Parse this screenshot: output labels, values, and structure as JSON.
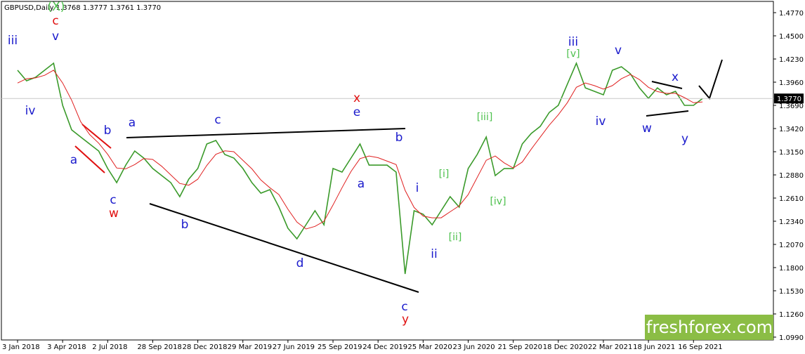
{
  "chart_data": {
    "type": "line",
    "title": "GBPUSD,Daily  1.3768 1.3777 1.3761 1.3770",
    "watermark": "freshforex.com",
    "categories": [
      "3 Jan 2018",
      null,
      null,
      null,
      null,
      "3 Apr 2018",
      null,
      null,
      null,
      null,
      "2 Jul 2018",
      null,
      null,
      null,
      null,
      "28 Sep 2018",
      null,
      null,
      null,
      null,
      "28 Dec 2018",
      null,
      null,
      null,
      null,
      "29 Mar 2019",
      null,
      null,
      null,
      null,
      "27 Jun 2019",
      null,
      null,
      null,
      null,
      "25 Sep 2019",
      null,
      null,
      null,
      null,
      "24 Dec 2019",
      null,
      null,
      null,
      null,
      "25 Mar 2020",
      null,
      null,
      null,
      null,
      "23 Jun 2020",
      null,
      null,
      null,
      null,
      "21 Sep 2020",
      null,
      null,
      null,
      null,
      "18 Dec 2020",
      null,
      null,
      null,
      null,
      "22 Mar 2021",
      null,
      null,
      null,
      null,
      "18 Jun 2021",
      null,
      null,
      null,
      null,
      "16 Sep 2021",
      null
    ],
    "series": [
      {
        "name": "GBPUSD",
        "color": "#3a9a2a",
        "values": [
          1.4099,
          1.3976,
          1.4017,
          1.4099,
          1.4181,
          1.369,
          1.3404,
          1.3322,
          1.324,
          1.3158,
          1.2954,
          1.279,
          1.2994,
          1.3158,
          1.3076,
          1.2954,
          1.2872,
          1.279,
          1.2626,
          1.2831,
          1.2954,
          1.324,
          1.3281,
          1.3117,
          1.3076,
          1.2954,
          1.279,
          1.2667,
          1.2708,
          1.2504,
          1.2258,
          1.2135,
          1.2299,
          1.2463,
          1.2299,
          1.2954,
          1.2913,
          1.3076,
          1.324,
          1.2994,
          1.2994,
          1.2994,
          1.2913,
          1.1726,
          1.2463,
          1.2422,
          1.2299,
          1.2463,
          1.2626,
          1.2504,
          1.2954,
          1.3117,
          1.3322,
          1.2872,
          1.2954,
          1.2954,
          1.324,
          1.3363,
          1.3445,
          1.3608,
          1.369,
          1.3935,
          1.4181,
          1.3894,
          1.3854,
          1.3813,
          1.4099,
          1.414,
          1.4058,
          1.3894,
          1.3772,
          1.3894,
          1.3813,
          1.3854,
          1.369,
          1.369,
          1.377
        ],
        "value_labels": [
          null,
          null,
          null,
          null,
          null,
          null,
          null,
          null,
          null,
          null,
          null,
          null,
          null,
          null,
          null,
          null,
          null,
          null,
          null,
          null,
          null,
          null,
          null,
          null,
          null,
          null,
          null,
          null,
          null,
          null,
          null,
          null,
          null,
          null,
          null,
          null,
          null,
          null,
          null,
          null,
          null,
          null,
          null,
          null,
          null,
          null,
          null,
          null,
          null,
          null,
          null,
          null,
          null,
          null,
          null,
          null,
          null,
          null,
          null,
          null,
          null,
          null,
          null,
          null,
          null,
          null,
          null,
          null,
          null,
          null,
          null,
          null,
          null,
          null,
          null,
          null,
          "1.3770"
        ]
      },
      {
        "name": "MA",
        "color": "#e02020",
        "values": [
          1.395,
          1.4,
          1.401,
          1.404,
          1.41,
          1.395,
          1.375,
          1.35,
          1.335,
          1.325,
          1.312,
          1.296,
          1.295,
          1.3,
          1.307,
          1.306,
          1.298,
          1.288,
          1.278,
          1.276,
          1.283,
          1.299,
          1.312,
          1.316,
          1.315,
          1.305,
          1.295,
          1.282,
          1.273,
          1.265,
          1.248,
          1.233,
          1.225,
          1.228,
          1.234,
          1.253,
          1.273,
          1.292,
          1.307,
          1.31,
          1.308,
          1.304,
          1.3,
          1.27,
          1.25,
          1.24,
          1.238,
          1.238,
          1.245,
          1.252,
          1.265,
          1.285,
          1.305,
          1.31,
          1.302,
          1.296,
          1.303,
          1.318,
          1.332,
          1.346,
          1.358,
          1.372,
          1.39,
          1.395,
          1.392,
          1.388,
          1.392,
          1.4,
          1.405,
          1.399,
          1.39,
          1.385,
          1.383,
          1.383,
          1.378,
          1.372,
          1.373
        ]
      }
    ],
    "ylim": [
      1.4901,
      1.0957
    ],
    "yticks": [
      {
        "value": 1.477,
        "label": "1.4770"
      },
      {
        "value": 1.45,
        "label": "1.4500"
      },
      {
        "value": 1.423,
        "label": "1.4230"
      },
      {
        "value": 1.396,
        "label": "1.3960"
      },
      {
        "value": 1.369,
        "label": "1.3690"
      },
      {
        "value": 1.342,
        "label": "1.3420"
      },
      {
        "value": 1.315,
        "label": "1.3150"
      },
      {
        "value": 1.288,
        "label": "1.2880"
      },
      {
        "value": 1.261,
        "label": "1.2610"
      },
      {
        "value": 1.234,
        "label": "1.2340"
      },
      {
        "value": 1.207,
        "label": "1.2070"
      },
      {
        "value": 1.18,
        "label": "1.1800"
      },
      {
        "value": 1.153,
        "label": "1.1530"
      },
      {
        "value": 1.126,
        "label": "1.1260"
      },
      {
        "value": 1.099,
        "label": "1.0990"
      }
    ],
    "annotations": [
      {
        "text": "iii",
        "color": "#1a1acc"
      },
      {
        "text": "v",
        "color": "#1a1acc"
      },
      {
        "text": "c",
        "color": "#e01010"
      },
      {
        "text": "(X)",
        "color": "#4cc04c"
      },
      {
        "text": "iv",
        "color": "#1a1acc"
      },
      {
        "text": "b",
        "color": "#1a1acc"
      },
      {
        "text": "a",
        "color": "#1a1acc"
      },
      {
        "text": "c",
        "color": "#1a1acc"
      },
      {
        "text": "w",
        "color": "#e01010"
      },
      {
        "text": "a",
        "color": "#1a1acc"
      },
      {
        "text": "c",
        "color": "#1a1acc"
      },
      {
        "text": "b",
        "color": "#1a1acc"
      },
      {
        "text": "d",
        "color": "#1a1acc"
      },
      {
        "text": "x",
        "color": "#e01010"
      },
      {
        "text": "e",
        "color": "#1a1acc"
      },
      {
        "text": "a",
        "color": "#1a1acc"
      },
      {
        "text": "b",
        "color": "#1a1acc"
      },
      {
        "text": "c",
        "color": "#1a1acc"
      },
      {
        "text": "y",
        "color": "#e01010"
      },
      {
        "text": "i",
        "color": "#1a1acc"
      },
      {
        "text": "ii",
        "color": "#1a1acc"
      },
      {
        "text": "[i]",
        "color": "#4cc04c"
      },
      {
        "text": "[ii]",
        "color": "#4cc04c"
      },
      {
        "text": "[iii]",
        "color": "#4cc04c"
      },
      {
        "text": "[iv]",
        "color": "#4cc04c"
      },
      {
        "text": "iii",
        "color": "#1a1acc"
      },
      {
        "text": "[v]",
        "color": "#4cc04c"
      },
      {
        "text": "v",
        "color": "#1a1acc"
      },
      {
        "text": "iv",
        "color": "#1a1acc"
      },
      {
        "text": "w",
        "color": "#1a1acc"
      },
      {
        "text": "x",
        "color": "#1a1acc"
      },
      {
        "text": "y",
        "color": "#1a1acc"
      }
    ]
  }
}
